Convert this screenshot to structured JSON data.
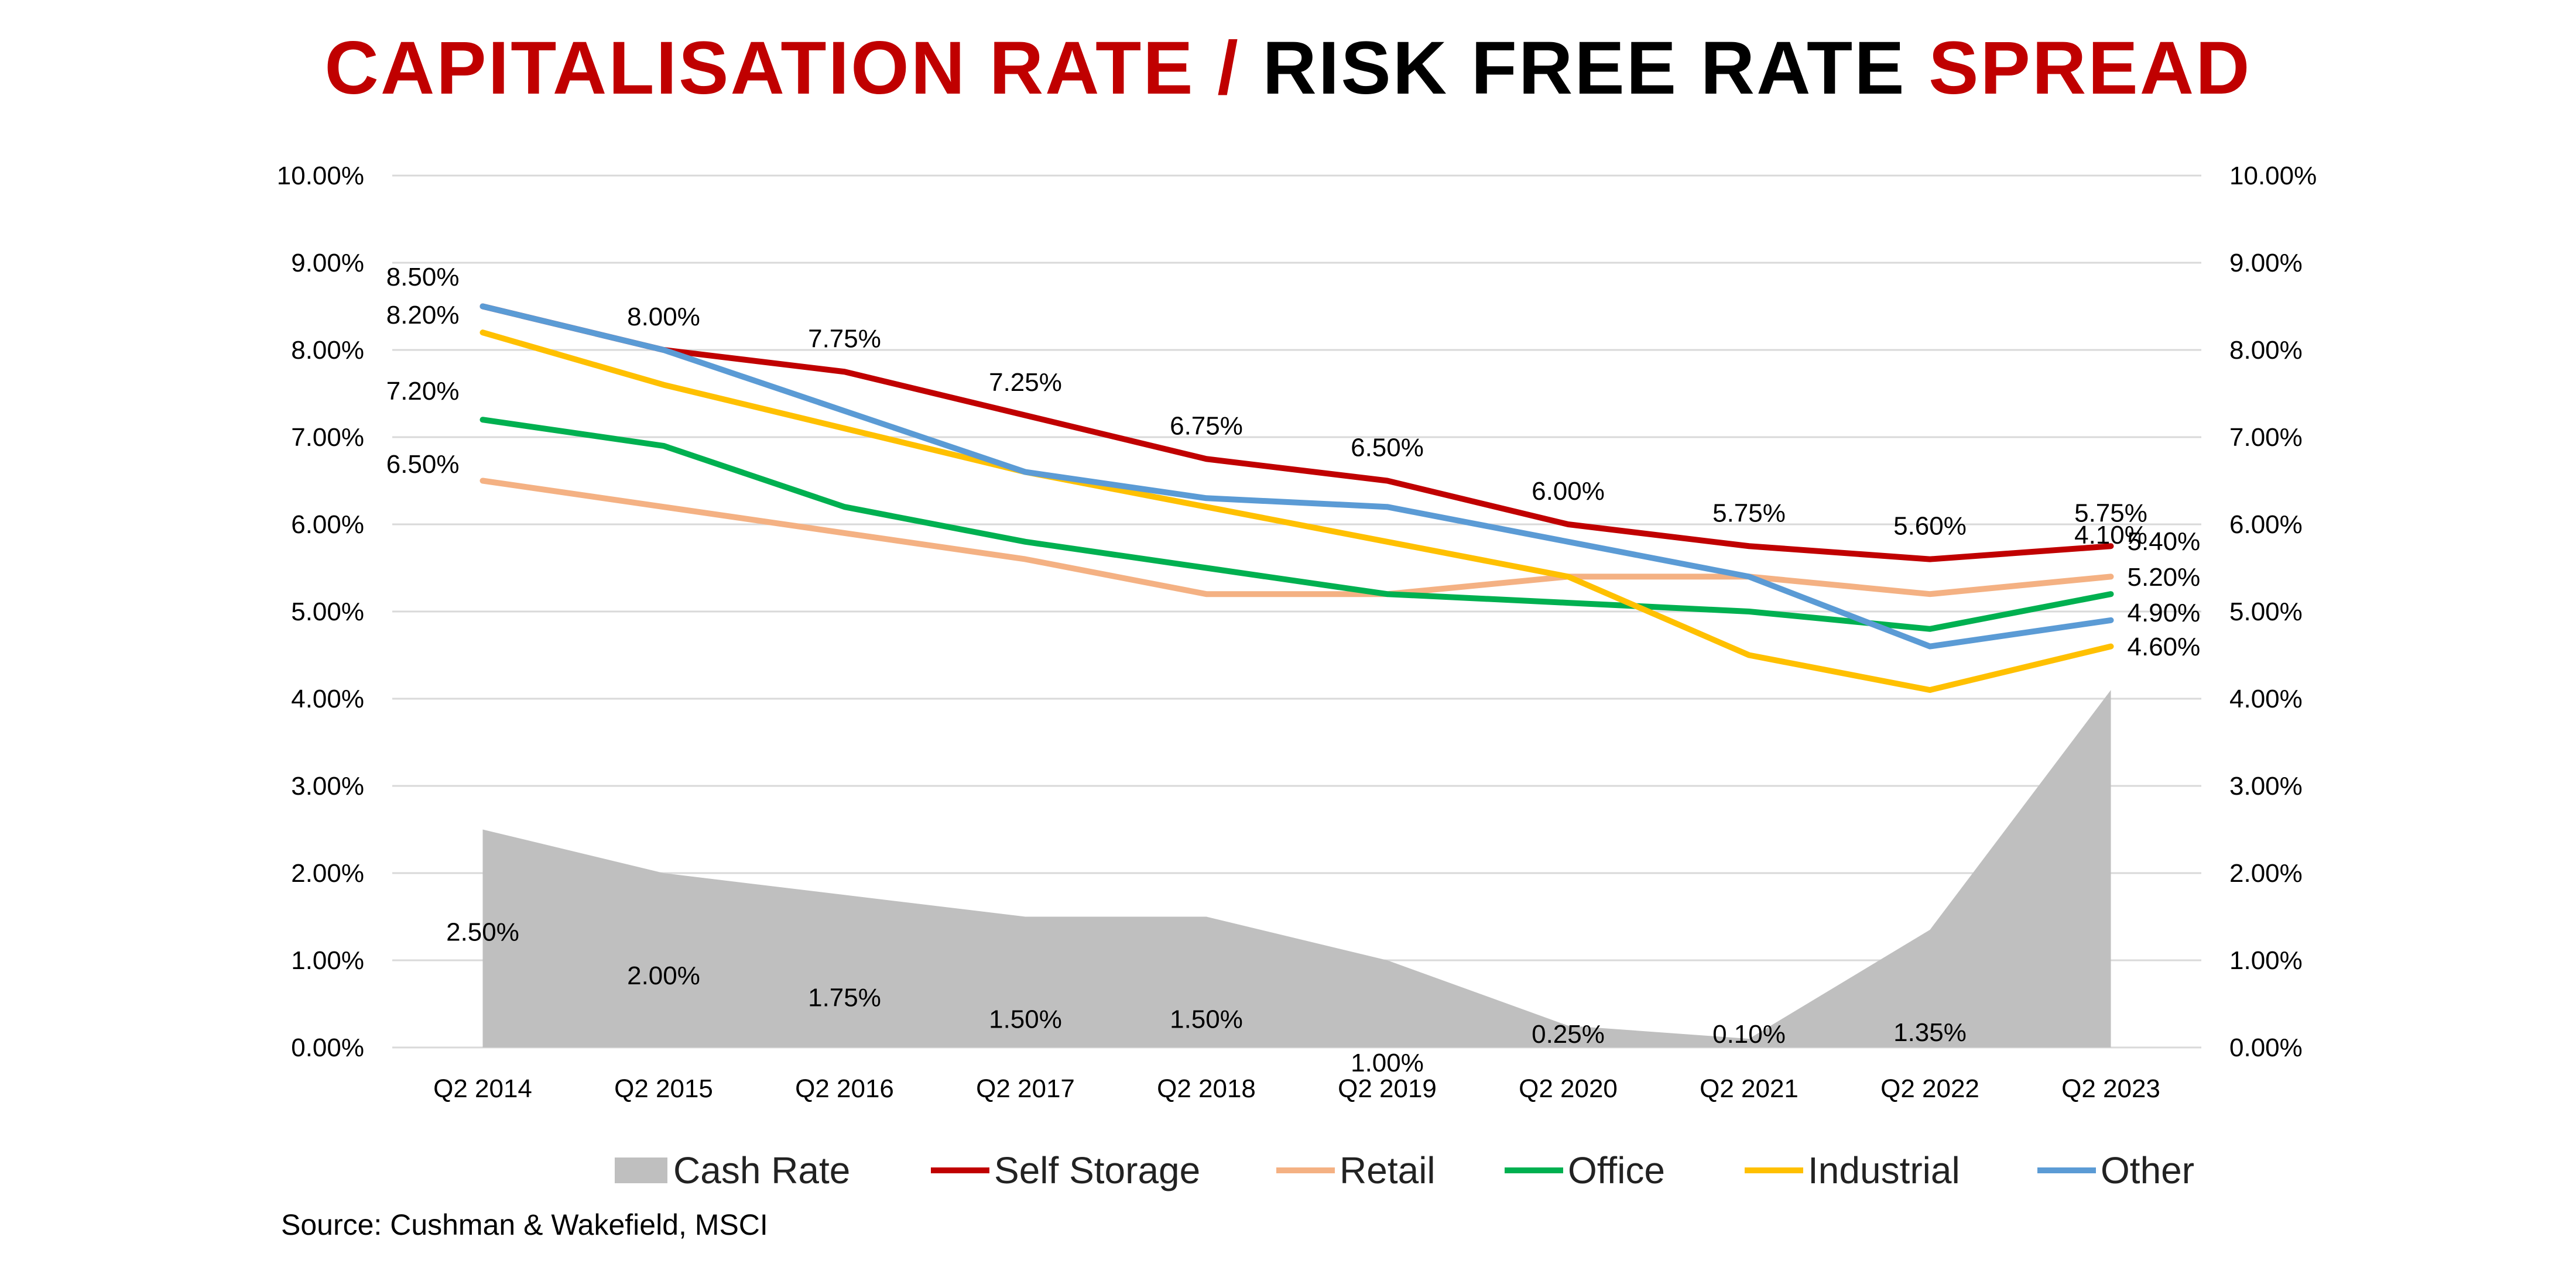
{
  "title": {
    "part1": "CAPITALISATION RATE /",
    "part2": " RISK FREE RATE ",
    "part3": "SPREAD"
  },
  "source": "Source: Cushman & Wakefield, MSCI",
  "colors": {
    "title_red": "#C00000",
    "title_black": "#000000",
    "grid": "#D9D9D9",
    "cash_rate": "#BFBFBF",
    "self_storage": "#C00000",
    "retail": "#F4B183",
    "office": "#00B050",
    "industrial": "#FFC000",
    "other": "#5B9BD5"
  },
  "chart_data": {
    "type": "line",
    "categories": [
      "Q2 2014",
      "Q2 2015",
      "Q2 2016",
      "Q2 2017",
      "Q2 2018",
      "Q2 2019",
      "Q2 2020",
      "Q2 2021",
      "Q2 2022",
      "Q2 2023"
    ],
    "ylim": [
      0,
      10
    ],
    "y_ticks": [
      0,
      1,
      2,
      3,
      4,
      5,
      6,
      7,
      8,
      9,
      10
    ],
    "y_tick_labels": [
      "0.00%",
      "1.00%",
      "2.00%",
      "3.00%",
      "4.00%",
      "5.00%",
      "6.00%",
      "7.00%",
      "8.00%",
      "9.00%",
      "10.00%"
    ],
    "secondary_axis": true,
    "grid": true,
    "legend_position": "bottom",
    "series": [
      {
        "name": "Cash Rate",
        "type": "area",
        "color": "#BFBFBF",
        "values": [
          2.5,
          2.0,
          1.75,
          1.5,
          1.5,
          1.0,
          0.25,
          0.1,
          1.35,
          4.1
        ],
        "labels": [
          "2.50%",
          "2.00%",
          "1.75%",
          "1.50%",
          "1.50%",
          "1.00%",
          "0.25%",
          "0.10%",
          "1.35%",
          "4.10%"
        ]
      },
      {
        "name": "Self Storage",
        "type": "line",
        "color": "#C00000",
        "values": [
          8.5,
          8.0,
          7.75,
          7.25,
          6.75,
          6.5,
          6.0,
          5.75,
          5.6,
          5.75
        ],
        "labels": [
          "",
          "8.00%",
          "7.75%",
          "7.25%",
          "6.75%",
          "6.50%",
          "6.00%",
          "5.75%",
          "5.60%",
          "5.75%"
        ]
      },
      {
        "name": "Retail",
        "type": "line",
        "color": "#F4B183",
        "values": [
          6.5,
          6.2,
          5.9,
          5.6,
          5.2,
          5.2,
          5.4,
          5.4,
          5.2,
          5.4
        ],
        "labels": [
          "6.50%",
          "",
          "",
          "",
          "",
          "",
          "",
          "",
          "",
          "5.40%"
        ]
      },
      {
        "name": "Office",
        "type": "line",
        "color": "#00B050",
        "values": [
          7.2,
          6.9,
          6.2,
          5.8,
          5.5,
          5.2,
          5.1,
          5.0,
          4.8,
          5.2
        ],
        "labels": [
          "7.20%",
          "",
          "",
          "",
          "",
          "",
          "",
          "",
          "",
          "5.20%"
        ]
      },
      {
        "name": "Industrial",
        "type": "line",
        "color": "#FFC000",
        "values": [
          8.2,
          7.6,
          7.1,
          6.6,
          6.2,
          5.8,
          5.4,
          4.5,
          4.1,
          4.6
        ],
        "labels": [
          "8.20%",
          "",
          "",
          "",
          "",
          "",
          "",
          "",
          "",
          "4.60%"
        ]
      },
      {
        "name": "Other",
        "type": "line",
        "color": "#5B9BD5",
        "values": [
          8.5,
          8.0,
          7.3,
          6.6,
          6.3,
          6.2,
          5.8,
          5.4,
          4.6,
          4.9
        ],
        "labels": [
          "8.50%",
          "",
          "",
          "",
          "",
          "",
          "",
          "",
          "",
          "4.90%"
        ]
      }
    ]
  }
}
